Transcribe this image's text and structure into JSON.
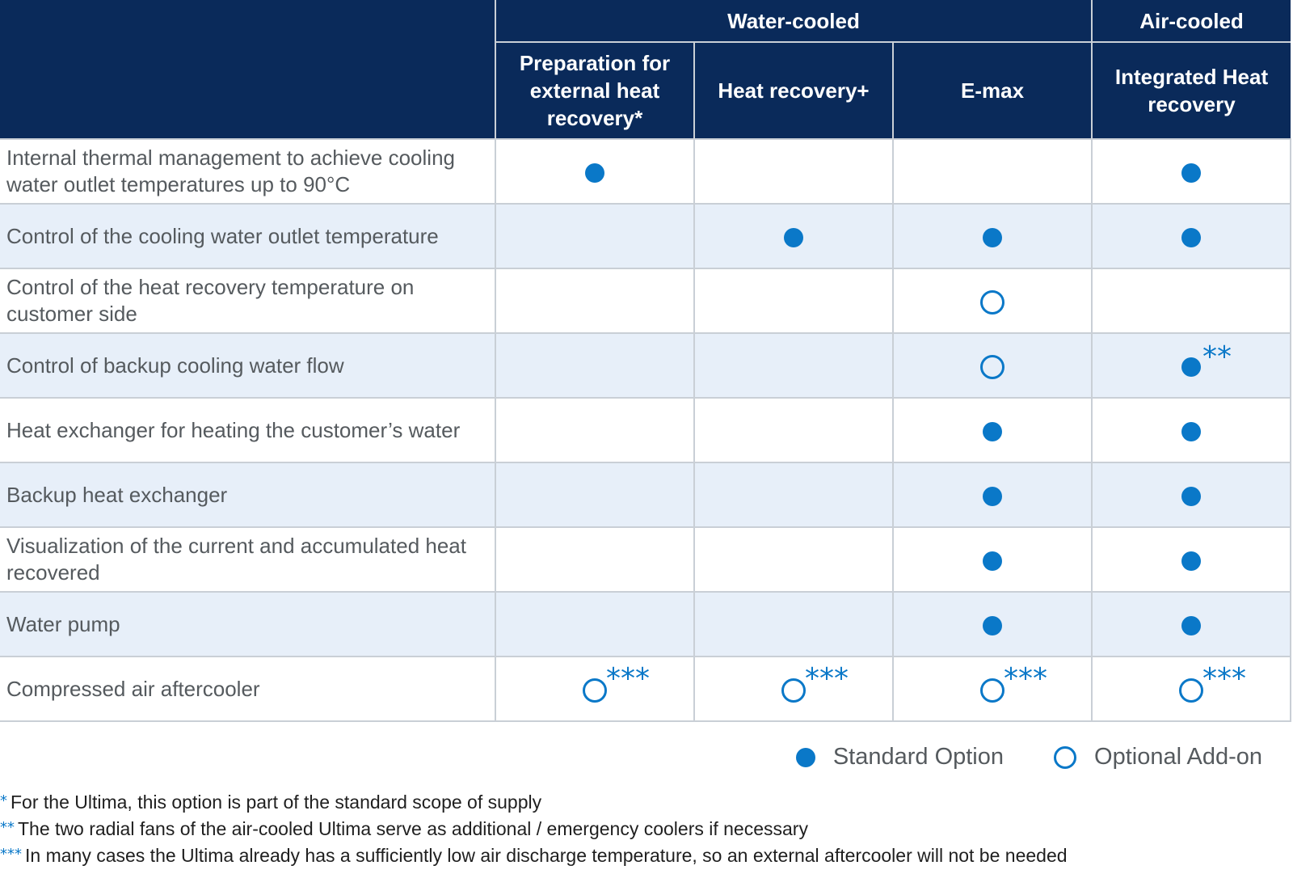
{
  "colors": {
    "header_bg": "#0a2a5a",
    "accent": "#0a78c8",
    "row_alt": "#e7eff9",
    "grid": "#c9cfd6"
  },
  "header": {
    "groups": [
      {
        "label": "Water-cooled",
        "span": 3
      },
      {
        "label": "Air-cooled",
        "span": 1
      }
    ],
    "columns": [
      "Preparation for external heat recovery*",
      "Heat recovery+",
      "E-max",
      "Integrated Heat recovery"
    ]
  },
  "rows": [
    {
      "feature": "Internal thermal management to achieve cooling water outlet temperatures up to 90°C",
      "cells": [
        {
          "type": "standard",
          "note": ""
        },
        {
          "type": "",
          "note": ""
        },
        {
          "type": "",
          "note": ""
        },
        {
          "type": "standard",
          "note": ""
        }
      ]
    },
    {
      "feature": "Control of the cooling water outlet temperature",
      "cells": [
        {
          "type": "",
          "note": ""
        },
        {
          "type": "standard",
          "note": ""
        },
        {
          "type": "standard",
          "note": ""
        },
        {
          "type": "standard",
          "note": ""
        }
      ]
    },
    {
      "feature": "Control of the heat recovery temperature on customer side",
      "cells": [
        {
          "type": "",
          "note": ""
        },
        {
          "type": "",
          "note": ""
        },
        {
          "type": "optional",
          "note": ""
        },
        {
          "type": "",
          "note": ""
        }
      ]
    },
    {
      "feature": "Control of backup cooling water flow",
      "cells": [
        {
          "type": "",
          "note": ""
        },
        {
          "type": "",
          "note": ""
        },
        {
          "type": "optional",
          "note": ""
        },
        {
          "type": "standard",
          "note": "**"
        }
      ]
    },
    {
      "feature": "Heat exchanger for heating the customer’s water",
      "cells": [
        {
          "type": "",
          "note": ""
        },
        {
          "type": "",
          "note": ""
        },
        {
          "type": "standard",
          "note": ""
        },
        {
          "type": "standard",
          "note": ""
        }
      ]
    },
    {
      "feature": "Backup heat exchanger",
      "cells": [
        {
          "type": "",
          "note": ""
        },
        {
          "type": "",
          "note": ""
        },
        {
          "type": "standard",
          "note": ""
        },
        {
          "type": "standard",
          "note": ""
        }
      ]
    },
    {
      "feature": "Visualization of the current and accumulated heat recovered",
      "cells": [
        {
          "type": "",
          "note": ""
        },
        {
          "type": "",
          "note": ""
        },
        {
          "type": "standard",
          "note": ""
        },
        {
          "type": "standard",
          "note": ""
        }
      ]
    },
    {
      "feature": "Water pump",
      "cells": [
        {
          "type": "",
          "note": ""
        },
        {
          "type": "",
          "note": ""
        },
        {
          "type": "standard",
          "note": ""
        },
        {
          "type": "standard",
          "note": ""
        }
      ]
    },
    {
      "feature": "Compressed air aftercooler",
      "cells": [
        {
          "type": "optional",
          "note": "***"
        },
        {
          "type": "optional",
          "note": "***"
        },
        {
          "type": "optional",
          "note": "***"
        },
        {
          "type": "optional",
          "note": "***"
        }
      ]
    }
  ],
  "legend": {
    "standard": "Standard Option",
    "optional": "Optional Add-on"
  },
  "footnotes": [
    {
      "mark": "*",
      "text": "For the Ultima, this option is part of the standard scope of supply"
    },
    {
      "mark": "**",
      "text": "The two radial fans of the air-cooled Ultima serve as additional / emergency coolers if necessary"
    },
    {
      "mark": "***",
      "text": "In many cases the Ultima already has a sufficiently low air discharge temperature, so an external aftercooler will not be needed"
    }
  ]
}
